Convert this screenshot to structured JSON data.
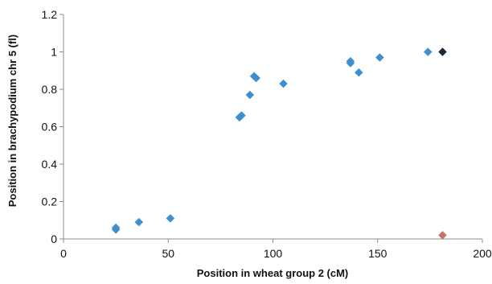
{
  "chart_data": {
    "type": "scatter",
    "title": "",
    "xlabel": "Position in wheat group 2 (cM)",
    "ylabel": "Position in brachypodium chr 5 (fl)",
    "xlim": [
      0,
      200
    ],
    "ylim": [
      0,
      1.2
    ],
    "x_ticks": [
      "0",
      "50",
      "100",
      "150",
      "200"
    ],
    "y_ticks": [
      "0",
      "0.2",
      "0.4",
      "0.6",
      "0.8",
      "1",
      "1.2"
    ],
    "grid": false,
    "legend": "none",
    "colors": {
      "primary": "#3d8fd0",
      "secondary": "#c9706a",
      "outlier_dark": "#1a2a3a"
    },
    "series": [
      {
        "color": "#3d8fd0",
        "points": [
          {
            "x": 25,
            "y": 0.06
          },
          {
            "x": 25,
            "y": 0.05
          },
          {
            "x": 36,
            "y": 0.09
          },
          {
            "x": 51,
            "y": 0.11
          },
          {
            "x": 84,
            "y": 0.65
          },
          {
            "x": 85,
            "y": 0.66
          },
          {
            "x": 89,
            "y": 0.77
          },
          {
            "x": 91,
            "y": 0.87
          },
          {
            "x": 92,
            "y": 0.86
          },
          {
            "x": 105,
            "y": 0.83
          },
          {
            "x": 137,
            "y": 0.95
          },
          {
            "x": 137,
            "y": 0.94
          },
          {
            "x": 141,
            "y": 0.89
          },
          {
            "x": 151,
            "y": 0.97
          },
          {
            "x": 174,
            "y": 1.0
          }
        ]
      },
      {
        "color": "#1a2a3a",
        "points": [
          {
            "x": 181,
            "y": 1.0
          }
        ]
      },
      {
        "color": "#c9706a",
        "points": [
          {
            "x": 181,
            "y": 0.02
          }
        ]
      }
    ]
  }
}
